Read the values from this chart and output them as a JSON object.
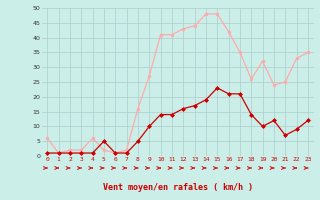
{
  "x": [
    0,
    1,
    2,
    3,
    4,
    5,
    6,
    7,
    8,
    9,
    10,
    11,
    12,
    13,
    14,
    15,
    16,
    17,
    18,
    19,
    20,
    21,
    22,
    23
  ],
  "avg_wind": [
    1,
    1,
    1,
    1,
    1,
    5,
    1,
    1,
    5,
    10,
    14,
    14,
    16,
    17,
    19,
    23,
    21,
    21,
    14,
    10,
    12,
    7,
    9,
    12
  ],
  "gust_wind": [
    6,
    1,
    2,
    2,
    6,
    2,
    1,
    2,
    16,
    27,
    41,
    41,
    43,
    44,
    48,
    48,
    42,
    35,
    26,
    32,
    24,
    25,
    33,
    35
  ],
  "avg_color": "#cc0000",
  "gust_color": "#ffaaaa",
  "bg_color": "#cceee8",
  "grid_color": "#aacccc",
  "xlabel": "Vent moyen/en rafales ( km/h )",
  "xlabel_color": "#cc0000",
  "ylim": [
    0,
    50
  ],
  "yticks": [
    0,
    5,
    10,
    15,
    20,
    25,
    30,
    35,
    40,
    45,
    50
  ],
  "xticks": [
    0,
    1,
    2,
    3,
    4,
    5,
    6,
    7,
    8,
    9,
    10,
    11,
    12,
    13,
    14,
    15,
    16,
    17,
    18,
    19,
    20,
    21,
    22,
    23
  ]
}
